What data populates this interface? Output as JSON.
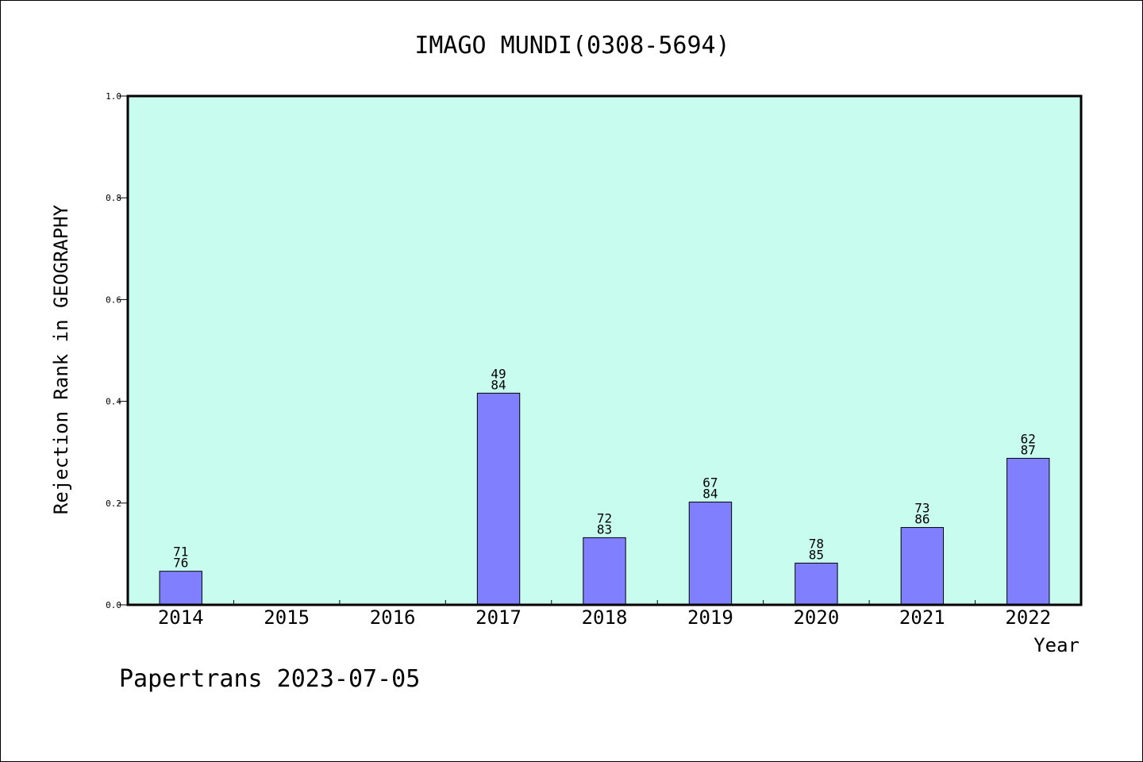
{
  "chart_data": {
    "type": "bar",
    "title": "IMAGO MUNDI(0308-5694)",
    "xlabel": "Year",
    "ylabel": "Rejection Rank in GEOGRAPHY",
    "categories": [
      "2014",
      "2015",
      "2016",
      "2017",
      "2018",
      "2019",
      "2020",
      "2021",
      "2022"
    ],
    "values": [
      0.066,
      null,
      null,
      0.416,
      0.132,
      0.202,
      0.082,
      0.152,
      0.288
    ],
    "bar_labels": [
      [
        "71",
        "76"
      ],
      null,
      null,
      [
        "49",
        "84"
      ],
      [
        "72",
        "83"
      ],
      [
        "67",
        "84"
      ],
      [
        "78",
        "85"
      ],
      [
        "73",
        "86"
      ],
      [
        "62",
        "87"
      ]
    ],
    "ylim": [
      0,
      1.0
    ],
    "yticks": [
      "0.0",
      "0.2",
      "0.4",
      "0.6",
      "0.8",
      "1.0"
    ],
    "grid": false,
    "colors": {
      "plot_background": "#c8fcee",
      "bar_fill": "#8080ff",
      "bar_stroke": "#000000"
    }
  },
  "footer": "Papertrans 2023-07-05"
}
